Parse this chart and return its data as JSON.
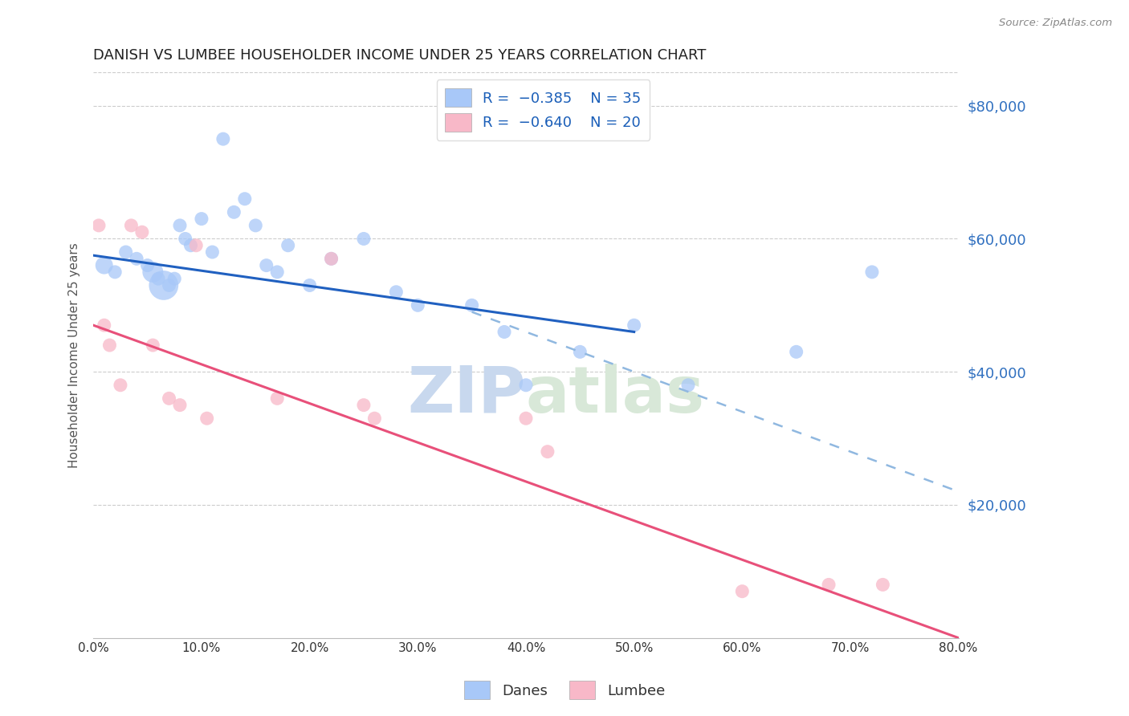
{
  "title": "DANISH VS LUMBEE HOUSEHOLDER INCOME UNDER 25 YEARS CORRELATION CHART",
  "source": "Source: ZipAtlas.com",
  "ylabel": "Householder Income Under 25 years",
  "xlabel_ticks": [
    "0.0%",
    "10.0%",
    "20.0%",
    "30.0%",
    "40.0%",
    "50.0%",
    "60.0%",
    "70.0%",
    "80.0%"
  ],
  "xlabel_vals": [
    0.0,
    10.0,
    20.0,
    30.0,
    40.0,
    50.0,
    60.0,
    70.0,
    80.0
  ],
  "ytick_labels": [
    "$80,000",
    "$60,000",
    "$40,000",
    "$20,000"
  ],
  "ytick_vals": [
    80000,
    60000,
    40000,
    20000
  ],
  "xlim": [
    0.0,
    80.0
  ],
  "ylim": [
    0,
    85000
  ],
  "danes_R": -0.385,
  "danes_N": 35,
  "lumbee_R": -0.64,
  "lumbee_N": 20,
  "danes_color": "#a8c8f8",
  "lumbee_color": "#f8b8c8",
  "danes_line_color": "#2060c0",
  "lumbee_line_color": "#e8507a",
  "dashed_line_color": "#90b8e0",
  "watermark_color": "#c8d8ee",
  "danes_x": [
    1.0,
    2.0,
    3.0,
    4.0,
    5.0,
    5.5,
    6.0,
    6.5,
    7.0,
    7.5,
    8.0,
    8.5,
    9.0,
    10.0,
    11.0,
    12.0,
    13.0,
    14.0,
    15.0,
    16.0,
    17.0,
    18.0,
    20.0,
    22.0,
    25.0,
    28.0,
    30.0,
    35.0,
    38.0,
    40.0,
    45.0,
    50.0,
    55.0,
    65.0,
    72.0
  ],
  "danes_y": [
    56000,
    55000,
    58000,
    57000,
    56000,
    55000,
    54000,
    53000,
    53000,
    54000,
    62000,
    60000,
    59000,
    63000,
    58000,
    75000,
    64000,
    66000,
    62000,
    56000,
    55000,
    59000,
    53000,
    57000,
    60000,
    52000,
    50000,
    50000,
    46000,
    38000,
    43000,
    47000,
    38000,
    43000,
    55000
  ],
  "danes_sizes": [
    250,
    150,
    150,
    150,
    150,
    350,
    150,
    700,
    150,
    150,
    150,
    150,
    150,
    150,
    150,
    150,
    150,
    150,
    150,
    150,
    150,
    150,
    150,
    150,
    150,
    150,
    150,
    150,
    150,
    150,
    150,
    150,
    150,
    150,
    150
  ],
  "lumbee_x": [
    0.5,
    1.0,
    1.5,
    2.5,
    3.5,
    4.5,
    5.5,
    7.0,
    8.0,
    9.5,
    10.5,
    17.0,
    22.0,
    25.0,
    26.0,
    40.0,
    42.0,
    60.0,
    68.0,
    73.0
  ],
  "lumbee_y": [
    62000,
    47000,
    44000,
    38000,
    62000,
    61000,
    44000,
    36000,
    35000,
    59000,
    33000,
    36000,
    57000,
    35000,
    33000,
    33000,
    28000,
    7000,
    8000,
    8000
  ],
  "lumbee_sizes": [
    150,
    150,
    150,
    150,
    150,
    150,
    150,
    150,
    150,
    150,
    150,
    150,
    150,
    150,
    150,
    150,
    150,
    150,
    150,
    150
  ],
  "danes_line_x0": 0.0,
  "danes_line_y0": 57500,
  "danes_line_x1": 50.0,
  "danes_line_y1": 46000,
  "danes_dash_x0": 35.0,
  "danes_dash_y0": 49000,
  "danes_dash_x1": 80.0,
  "danes_dash_y1": 22000,
  "lumbee_line_x0": 0.0,
  "lumbee_line_y0": 47000,
  "lumbee_line_x1": 80.0,
  "lumbee_line_y1": 0,
  "title_color": "#222222",
  "axis_label_color": "#555555",
  "right_tick_color": "#3070c0",
  "grid_color": "#cccccc",
  "grid_style": "--"
}
